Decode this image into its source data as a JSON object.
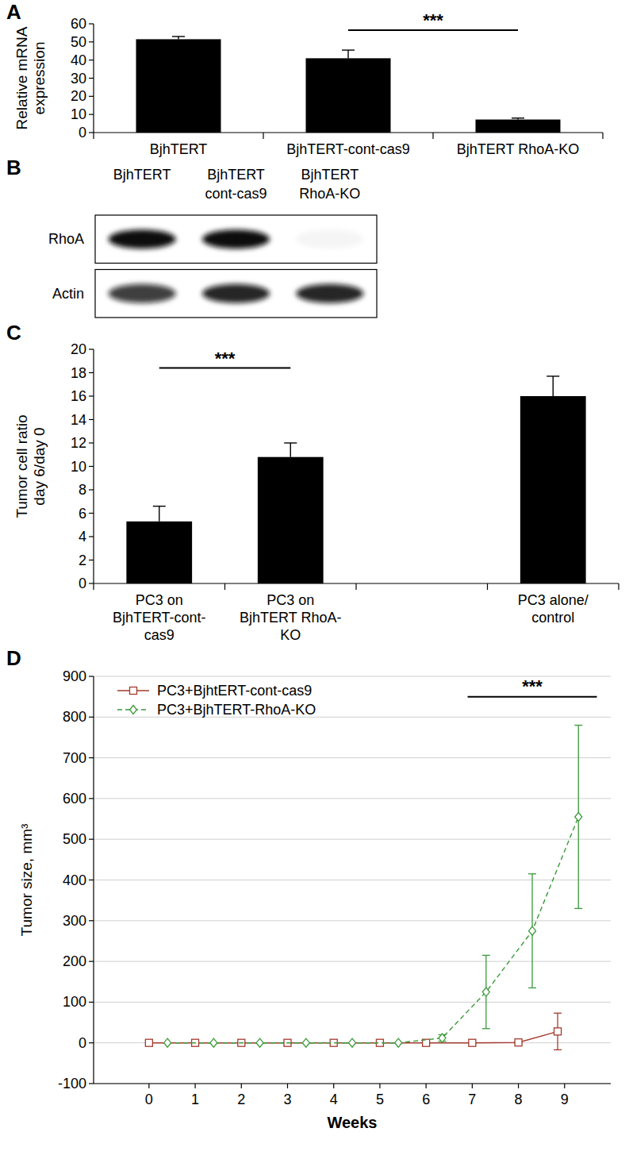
{
  "chart_data": [
    {
      "type": "bar",
      "title": "A",
      "categories": [
        "BjhTERT",
        "BjhTERT-cont-cas9",
        "BjhTERT RhoA-KO"
      ],
      "values": [
        51.5,
        41,
        7.2
      ],
      "errors": [
        1.5,
        4.5,
        0.8
      ],
      "color": "#000000",
      "y_label": "Relative mRNA expression",
      "ylim": [
        0,
        60
      ],
      "yticks": [
        0,
        10,
        20,
        30,
        40,
        50,
        60
      ],
      "annotations": [
        {
          "text": "***",
          "between": [
            1,
            2
          ],
          "y": 56.5
        }
      ]
    },
    {
      "type": "blot",
      "title": "B",
      "categories": [
        "BjhTERT",
        "BjhTERT cont-cas9",
        "BjhTERT RhoA-KO"
      ],
      "series": [
        {
          "name": "RhoA",
          "values": [
            1,
            1,
            0.04
          ]
        },
        {
          "name": "Actin",
          "values": [
            0.8,
            0.9,
            0.9
          ]
        }
      ]
    },
    {
      "type": "bar",
      "title": "C",
      "categories": [
        "PC3 on BjhTERT-cont-cas9",
        "PC3 on BjhTERT RhoA-KO",
        null,
        "PC3 alone/ control"
      ],
      "values": [
        5.3,
        10.8,
        null,
        16
      ],
      "errors": [
        1.3,
        1.2,
        null,
        1.7
      ],
      "color": "#000000",
      "y_label": "Tumor cell ratio day 6/day 0",
      "ylim": [
        0,
        20
      ],
      "yticks": [
        0,
        2,
        4,
        6,
        8,
        10,
        12,
        14,
        16,
        18,
        20
      ],
      "annotations": [
        {
          "text": "***",
          "between": [
            0,
            1
          ],
          "y": 18.4
        }
      ]
    },
    {
      "type": "line",
      "title": "D",
      "x_label": "Weeks",
      "y_label": "Tumor size, mm³",
      "xlim": [
        -1.2,
        10
      ],
      "xticks": [
        0,
        1,
        2,
        3,
        4,
        5,
        6,
        7,
        8,
        9
      ],
      "ylim": [
        -100,
        900
      ],
      "yticks": [
        -100,
        0,
        100,
        200,
        300,
        400,
        500,
        600,
        700,
        800,
        900
      ],
      "grid": true,
      "legend": "upper left",
      "series": [
        {
          "name": "PC3+BjhtERT-cont-cas9",
          "color": "#a33b2f",
          "marker": "square",
          "line_style": "solid",
          "x": [
            0,
            1,
            2,
            3,
            4,
            5,
            6,
            7,
            8,
            8.85
          ],
          "values": [
            0,
            0,
            0,
            0,
            0,
            0,
            0,
            0,
            1,
            28
          ],
          "errors": [
            0,
            0,
            0,
            0,
            0,
            0,
            0,
            0,
            2,
            45
          ]
        },
        {
          "name": "PC3+BjhTERT-RhoA-KO",
          "color": "#3a9a3a",
          "marker": "diamond",
          "line_style": "dashed",
          "x": [
            0.4,
            1.4,
            2.4,
            3.4,
            4.4,
            5.4,
            6.35,
            7.3,
            8.3,
            9.3
          ],
          "values": [
            0,
            0,
            0,
            0,
            0,
            0,
            12,
            125,
            275,
            555
          ],
          "errors": [
            0,
            0,
            0,
            0,
            0,
            0,
            8,
            90,
            140,
            225
          ]
        }
      ],
      "annotations": [
        {
          "text": "***",
          "x": [
            6.9,
            9.7
          ],
          "y": 850
        }
      ]
    }
  ]
}
